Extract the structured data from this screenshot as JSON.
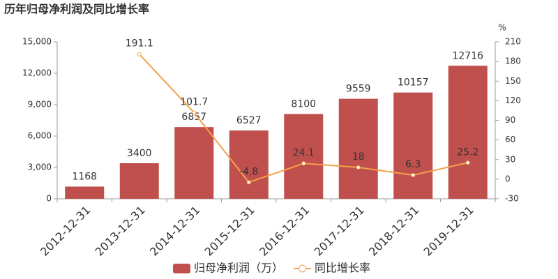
{
  "chart_data": {
    "type": "bar",
    "title": "历年归母净利润及同比增长率",
    "categories": [
      "2012-12-31",
      "2013-12-31",
      "2014-12-31",
      "2015-12-31",
      "2016-12-31",
      "2017-12-31",
      "2018-12-31",
      "2019-12-31"
    ],
    "series": [
      {
        "name": "归母净利润（万）",
        "color": "#c0504d",
        "values": [
          1168,
          3400,
          6857,
          6527,
          8100,
          9559,
          10157,
          12716
        ]
      },
      {
        "name": "同比增长率",
        "color": "#f5a04a",
        "type": "line",
        "axis": "y2",
        "values": [
          null,
          191.1,
          101.7,
          -4.8,
          24.1,
          18,
          6.3,
          25.2
        ]
      }
    ],
    "ylim": [
      0,
      15000
    ],
    "yticks": [
      0,
      {
        "value": 3000,
        "label": "3,000"
      },
      {
        "value": 6000,
        "label": "6,000"
      },
      {
        "value": 9000,
        "label": "9,000"
      },
      {
        "value": 12000,
        "label": "12,000"
      },
      {
        "value": 15000,
        "label": "15,000"
      }
    ],
    "y2label": "%",
    "y2lim": [
      -30,
      210
    ],
    "y2ticks": [
      -30,
      0,
      30,
      60,
      90,
      120,
      150,
      180,
      210
    ],
    "grid": false
  }
}
